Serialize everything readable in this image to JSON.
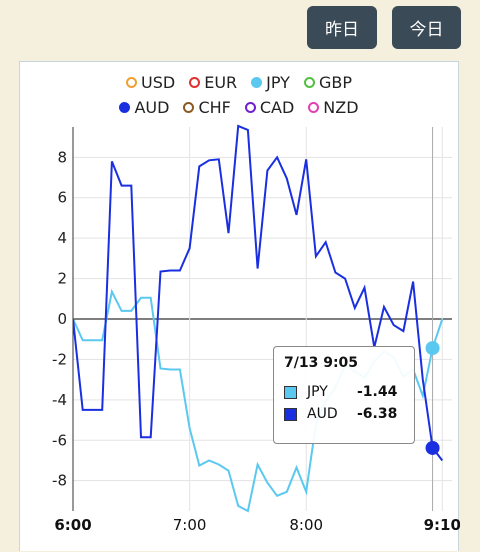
{
  "buttons": {
    "yesterday": "昨日",
    "today": "今日"
  },
  "legend": [
    {
      "label": "USD",
      "color": "#f0a030",
      "filled": false
    },
    {
      "label": "EUR",
      "color": "#e03030",
      "filled": false
    },
    {
      "label": "JPY",
      "color": "#5bc8f0",
      "filled": true
    },
    {
      "label": "GBP",
      "color": "#50c040",
      "filled": false
    },
    {
      "label": "AUD",
      "color": "#1a2fe0",
      "filled": true
    },
    {
      "label": "CHF",
      "color": "#8a5a20",
      "filled": false
    },
    {
      "label": "CAD",
      "color": "#7020d0",
      "filled": false
    },
    {
      "label": "NZD",
      "color": "#e040b0",
      "filled": false
    }
  ],
  "tooltip": {
    "title": "7/13 9:05",
    "rows": [
      {
        "name": "JPY",
        "value": "-1.44",
        "color": "#5bc8f0"
      },
      {
        "name": "AUD",
        "value": "-6.38",
        "color": "#1a2fe0"
      }
    ]
  },
  "chart_data": {
    "type": "line",
    "xlim": [
      "6:00",
      "9:15"
    ],
    "ylim": [
      -9.5,
      9.5
    ],
    "y_ticks": [
      -8,
      -6,
      -4,
      -2,
      0,
      2,
      4,
      6,
      8
    ],
    "x_ticks": [
      {
        "t": "6:00",
        "label": "6:00",
        "bold": true
      },
      {
        "t": "7:00",
        "label": "7:00",
        "bold": false
      },
      {
        "t": "8:00",
        "label": "8:00",
        "bold": false
      },
      {
        "t": "9:10",
        "label": "9:10",
        "bold": true
      }
    ],
    "crosshair_t": "9:05",
    "series": [
      {
        "name": "JPY",
        "color": "#5bc8f0",
        "points": [
          [
            "6:00",
            0
          ],
          [
            "6:05",
            -1.05
          ],
          [
            "6:10",
            -1.05
          ],
          [
            "6:15",
            -1.05
          ],
          [
            "6:20",
            1.35
          ],
          [
            "6:25",
            0.4
          ],
          [
            "6:30",
            0.4
          ],
          [
            "6:35",
            1.05
          ],
          [
            "6:40",
            1.05
          ],
          [
            "6:45",
            -2.45
          ],
          [
            "6:50",
            -2.5
          ],
          [
            "6:55",
            -2.5
          ],
          [
            "7:00",
            -5.4
          ],
          [
            "7:05",
            -7.25
          ],
          [
            "7:10",
            -7.0
          ],
          [
            "7:15",
            -7.2
          ],
          [
            "7:20",
            -7.5
          ],
          [
            "7:25",
            -9.25
          ],
          [
            "7:30",
            -9.5
          ],
          [
            "7:35",
            -7.2
          ],
          [
            "7:40",
            -8.1
          ],
          [
            "7:45",
            -8.75
          ],
          [
            "7:50",
            -8.55
          ],
          [
            "7:55",
            -7.35
          ],
          [
            "8:00",
            -8.55
          ],
          [
            "8:05",
            -5.2
          ],
          [
            "8:10",
            -4.05
          ],
          [
            "8:15",
            -3.4
          ],
          [
            "8:20",
            -2.3
          ],
          [
            "8:25",
            -2.6
          ],
          [
            "8:30",
            -2.9
          ],
          [
            "8:35",
            -2.1
          ],
          [
            "8:40",
            -1.6
          ],
          [
            "8:45",
            -1.9
          ],
          [
            "8:50",
            -2.85
          ],
          [
            "8:55",
            -2.5
          ],
          [
            "9:00",
            -3.8
          ],
          [
            "9:05",
            -1.44
          ],
          [
            "9:10",
            0
          ]
        ]
      },
      {
        "name": "AUD",
        "color": "#1a2fe0",
        "points": [
          [
            "6:00",
            0
          ],
          [
            "6:05",
            -4.5
          ],
          [
            "6:10",
            -4.5
          ],
          [
            "6:15",
            -4.5
          ],
          [
            "6:20",
            7.8
          ],
          [
            "6:25",
            6.6
          ],
          [
            "6:30",
            6.6
          ],
          [
            "6:35",
            -5.85
          ],
          [
            "6:40",
            -5.85
          ],
          [
            "6:45",
            2.35
          ],
          [
            "6:50",
            2.4
          ],
          [
            "6:55",
            2.4
          ],
          [
            "7:00",
            3.5
          ],
          [
            "7:05",
            7.55
          ],
          [
            "7:10",
            7.85
          ],
          [
            "7:15",
            7.9
          ],
          [
            "7:20",
            4.25
          ],
          [
            "7:25",
            9.55
          ],
          [
            "7:30",
            9.35
          ],
          [
            "7:35",
            2.5
          ],
          [
            "7:40",
            7.35
          ],
          [
            "7:45",
            8.0
          ],
          [
            "7:50",
            6.95
          ],
          [
            "7:55",
            5.15
          ],
          [
            "8:00",
            7.9
          ],
          [
            "8:05",
            3.1
          ],
          [
            "8:10",
            3.8
          ],
          [
            "8:15",
            2.3
          ],
          [
            "8:20",
            2.0
          ],
          [
            "8:25",
            0.55
          ],
          [
            "8:30",
            1.55
          ],
          [
            "8:35",
            -1.4
          ],
          [
            "8:40",
            0.6
          ],
          [
            "8:45",
            -0.3
          ],
          [
            "8:50",
            -0.6
          ],
          [
            "8:55",
            1.85
          ],
          [
            "9:00",
            -3.0
          ],
          [
            "9:05",
            -6.38
          ],
          [
            "9:10",
            -7.0
          ]
        ]
      }
    ]
  }
}
